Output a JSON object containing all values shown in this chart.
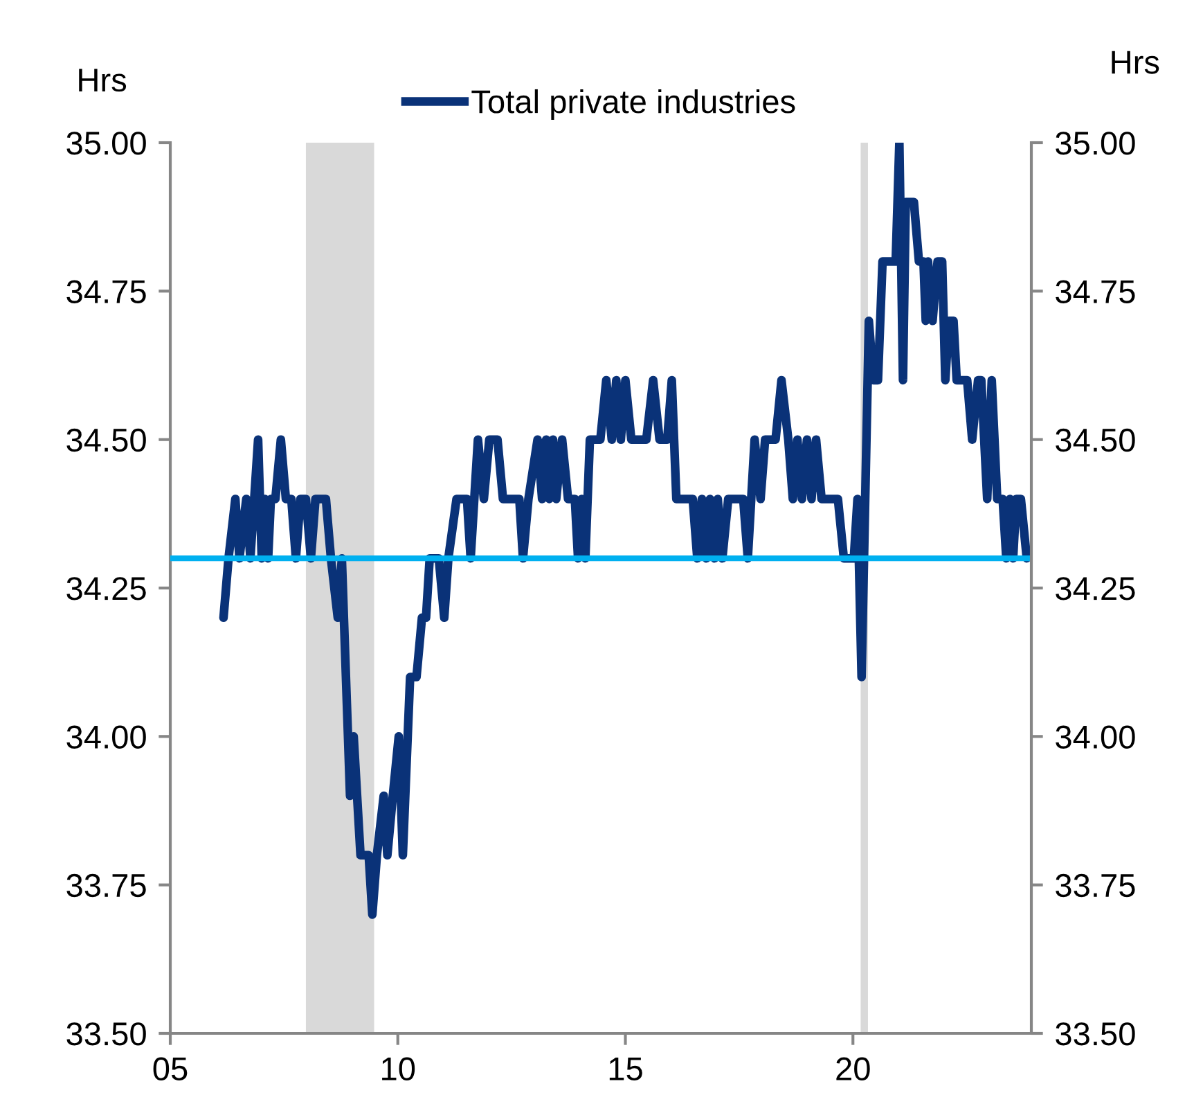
{
  "chart_data": {
    "type": "line",
    "ylabel": "Hrs",
    "y2label": "Hrs",
    "legend": "top",
    "x": [
      2006.17,
      2006.28,
      2006.43,
      2006.52,
      2006.67,
      2006.76,
      2006.93,
      2007.01,
      2007.08,
      2007.15,
      2007.21,
      2007.31,
      2007.43,
      2007.54,
      2007.66,
      2007.76,
      2007.86,
      2007.98,
      2008.09,
      2008.19,
      2008.42,
      2008.53,
      2008.68,
      2008.77,
      2008.95,
      2009.03,
      2009.18,
      2009.36,
      2009.44,
      2009.54,
      2009.69,
      2009.77,
      2009.89,
      2010.02,
      2010.11,
      2010.27,
      2010.41,
      2010.53,
      2010.62,
      2010.7,
      2010.9,
      2011.02,
      2011.11,
      2011.29,
      2011.52,
      2011.6,
      2011.76,
      2011.89,
      2012.01,
      2012.19,
      2012.31,
      2012.67,
      2012.75,
      2012.87,
      2013.07,
      2013.17,
      2013.26,
      2013.33,
      2013.41,
      2013.48,
      2013.61,
      2013.74,
      2013.89,
      2013.96,
      2014.04,
      2014.12,
      2014.22,
      2014.45,
      2014.58,
      2014.7,
      2014.8,
      2014.9,
      2015.0,
      2015.13,
      2015.46,
      2015.61,
      2015.75,
      2015.92,
      2016.02,
      2016.12,
      2016.48,
      2016.58,
      2016.68,
      2016.78,
      2016.86,
      2016.96,
      2017.03,
      2017.13,
      2017.26,
      2017.59,
      2017.69,
      2017.84,
      2017.97,
      2018.07,
      2018.3,
      2018.43,
      2018.58,
      2018.68,
      2018.78,
      2018.88,
      2018.99,
      2019.09,
      2019.19,
      2019.31,
      2019.67,
      2019.8,
      2020.02,
      2020.1,
      2020.19,
      2020.35,
      2020.45,
      2020.55,
      2020.65,
      2020.94,
      2021.02,
      2021.1,
      2021.16,
      2021.34,
      2021.45,
      2021.55,
      2021.6,
      2021.65,
      2021.75,
      2021.86,
      2021.96,
      2022.03,
      2022.11,
      2022.21,
      2022.28,
      2022.51,
      2022.62,
      2022.75,
      2022.82,
      2022.95,
      2023.05,
      2023.17,
      2023.29,
      2023.37,
      2023.45,
      2023.52,
      2023.59,
      2023.69,
      2023.82
    ],
    "series": [
      {
        "name": "Total private industries",
        "color": "#0a3278",
        "values": [
          34.2,
          34.3,
          34.4,
          34.3,
          34.4,
          34.3,
          34.5,
          34.3,
          34.4,
          34.3,
          34.4,
          34.4,
          34.5,
          34.4,
          34.4,
          34.3,
          34.4,
          34.4,
          34.3,
          34.4,
          34.4,
          34.3,
          34.2,
          34.3,
          33.9,
          34.0,
          33.8,
          33.8,
          33.7,
          33.8,
          33.9,
          33.8,
          33.9,
          34.0,
          33.8,
          34.1,
          34.1,
          34.2,
          34.2,
          34.3,
          34.3,
          34.2,
          34.3,
          34.4,
          34.4,
          34.3,
          34.5,
          34.4,
          34.5,
          34.5,
          34.4,
          34.4,
          34.3,
          34.4,
          34.5,
          34.4,
          34.5,
          34.4,
          34.5,
          34.4,
          34.5,
          34.4,
          34.4,
          34.3,
          34.4,
          34.3,
          34.5,
          34.5,
          34.6,
          34.5,
          34.6,
          34.5,
          34.6,
          34.5,
          34.5,
          34.6,
          34.5,
          34.5,
          34.6,
          34.4,
          34.4,
          34.3,
          34.4,
          34.3,
          34.4,
          34.3,
          34.4,
          34.3,
          34.4,
          34.4,
          34.3,
          34.5,
          34.4,
          34.5,
          34.5,
          34.6,
          34.5,
          34.4,
          34.5,
          34.4,
          34.5,
          34.4,
          34.5,
          34.4,
          34.4,
          34.3,
          34.3,
          34.4,
          34.1,
          34.7,
          34.6,
          34.6,
          34.8,
          34.8,
          35.0,
          34.6,
          34.9,
          34.9,
          34.8,
          34.8,
          34.7,
          34.8,
          34.7,
          34.8,
          34.8,
          34.6,
          34.7,
          34.7,
          34.6,
          34.6,
          34.5,
          34.6,
          34.6,
          34.4,
          34.6,
          34.4,
          34.4,
          34.3,
          34.4,
          34.3,
          34.4,
          34.4,
          34.3
        ]
      }
    ],
    "xlim": [
      2005,
      2023.92
    ],
    "xticks": [
      {
        "value": 2005,
        "label": "05"
      },
      {
        "value": 2010,
        "label": "10"
      },
      {
        "value": 2015,
        "label": "15"
      },
      {
        "value": 2020,
        "label": "20"
      }
    ],
    "ylim": [
      33.5,
      35.0
    ],
    "yticks": [
      {
        "value": 33.5,
        "label": "33.50"
      },
      {
        "value": 33.75,
        "label": "33.75"
      },
      {
        "value": 34.0,
        "label": "34.00"
      },
      {
        "value": 34.25,
        "label": "34.25"
      },
      {
        "value": 34.5,
        "label": "34.50"
      },
      {
        "value": 34.75,
        "label": "34.75"
      },
      {
        "value": 35.0,
        "label": "35.00"
      }
    ],
    "y2lim": [
      33.5,
      35.0
    ],
    "y2ticks": [
      {
        "value": 33.5,
        "label": "33.50"
      },
      {
        "value": 33.75,
        "label": "33.75"
      },
      {
        "value": 34.0,
        "label": "34.00"
      },
      {
        "value": 34.25,
        "label": "34.25"
      },
      {
        "value": 34.5,
        "label": "34.50"
      },
      {
        "value": 34.75,
        "label": "34.75"
      },
      {
        "value": 35.0,
        "label": "35.00"
      }
    ],
    "ref_lines": [
      {
        "axis": "y",
        "value": 34.3,
        "color": "#00b0f0"
      }
    ],
    "bands": [
      {
        "axis": "x",
        "from": 2007.98,
        "to": 2009.48,
        "color": "#d9d9d9"
      },
      {
        "axis": "x",
        "from": 2020.17,
        "to": 2020.33,
        "color": "#d9d9d9"
      }
    ],
    "grid": false,
    "marker": "none",
    "line_style": "solid"
  }
}
